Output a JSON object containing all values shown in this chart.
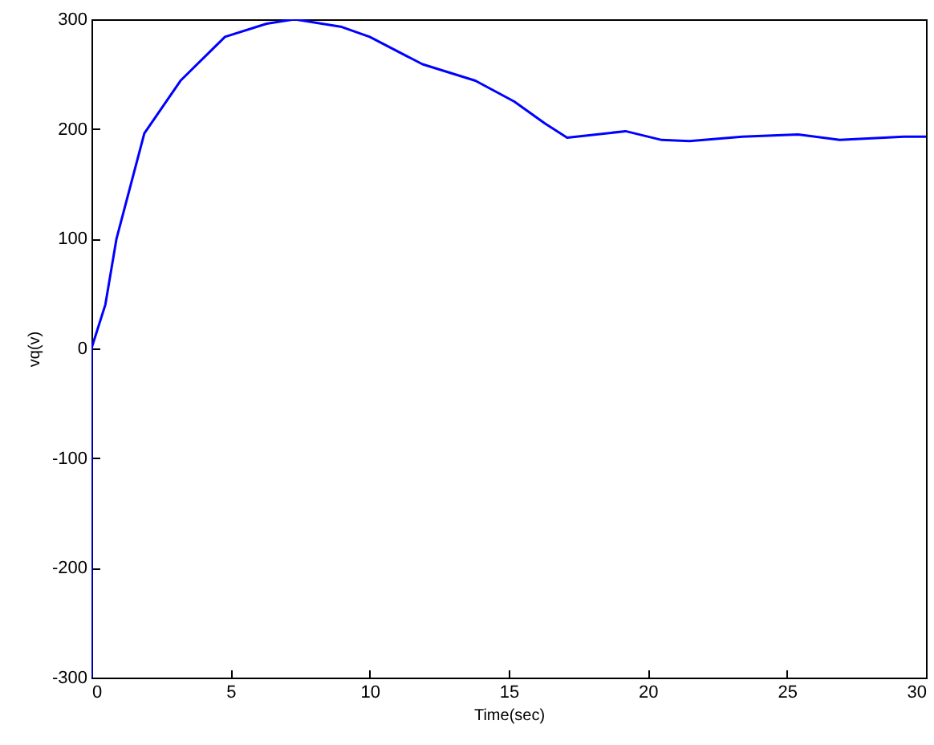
{
  "chart_data": {
    "type": "line",
    "xlabel": "Time(sec)",
    "ylabel": "vq(v)",
    "xlim": [
      0,
      30
    ],
    "xticks": [
      0,
      5,
      10,
      15,
      20,
      25,
      30
    ],
    "ylim": [
      -300,
      300
    ],
    "yticks": [
      -300,
      -200,
      -100,
      0,
      100,
      200,
      300
    ],
    "grid": false,
    "line_style": "solid",
    "series": [
      {
        "color": "#0000ff",
        "x": [
          0,
          0,
          0.5,
          0.9,
          1.9,
          3.2,
          4.8,
          6.3,
          7.3,
          9.0,
          10.0,
          11.9,
          13.8,
          15.2,
          16.3,
          17.1,
          19.2,
          20.5,
          21.5,
          23.4,
          25.4,
          26.9,
          29.2,
          30
        ],
        "values": [
          -300,
          0,
          40,
          100,
          196,
          244,
          284,
          296,
          300,
          293,
          284,
          259,
          244,
          225,
          205,
          192,
          198,
          190,
          189,
          193,
          195,
          190,
          193,
          193
        ]
      }
    ]
  }
}
